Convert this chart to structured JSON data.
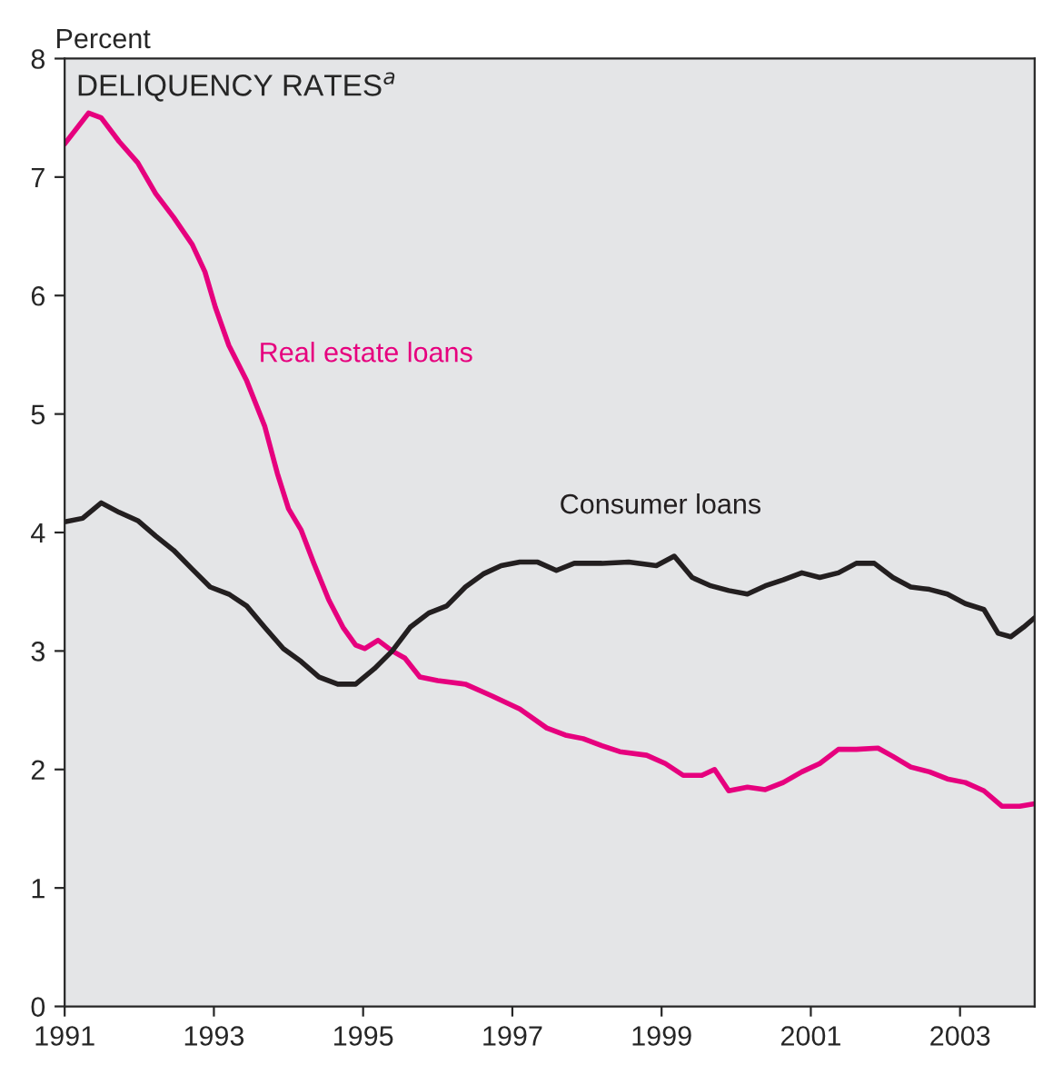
{
  "chart_data": {
    "type": "line",
    "title": "DELIQUENCY RATES$^{a}$",
    "ylabel": "Percent",
    "xlim": [
      1991,
      2004
    ],
    "xticks": [
      1991,
      1993,
      1995,
      1997,
      1999,
      2001,
      2003
    ],
    "ylim": [
      0,
      8
    ],
    "yticks": [
      0,
      1,
      2,
      3,
      4,
      5,
      6,
      7,
      8
    ],
    "grid": false,
    "legend": false,
    "marker": "none",
    "line_style": "solid",
    "series": [
      {
        "name": "Real estate loans",
        "color": "#e6007e",
        "x": [
          1991.0,
          1991.32,
          1991.49,
          1991.73,
          1991.98,
          1992.22,
          1992.46,
          1992.71,
          1992.88,
          1993.02,
          1993.2,
          1993.44,
          1993.68,
          1993.85,
          1994.0,
          1994.17,
          1994.34,
          1994.54,
          1994.73,
          1994.9,
          1995.02,
          1995.2,
          1995.39,
          1995.56,
          1995.76,
          1996.0,
          1996.37,
          1996.73,
          1997.1,
          1997.46,
          1997.71,
          1997.95,
          1998.2,
          1998.44,
          1998.8,
          1999.05,
          1999.29,
          1999.54,
          1999.71,
          1999.9,
          2000.15,
          2000.39,
          2000.63,
          2000.88,
          2001.12,
          2001.37,
          2001.61,
          2001.9,
          2002.1,
          2002.34,
          2002.59,
          2002.83,
          2003.07,
          2003.32,
          2003.56,
          2003.8,
          2004.0
        ],
        "values": [
          7.28,
          7.54,
          7.5,
          7.3,
          7.12,
          6.86,
          6.66,
          6.43,
          6.2,
          5.9,
          5.58,
          5.28,
          4.9,
          4.5,
          4.2,
          4.02,
          3.74,
          3.43,
          3.2,
          3.05,
          3.02,
          3.09,
          3.0,
          2.94,
          2.78,
          2.75,
          2.72,
          2.62,
          2.51,
          2.35,
          2.29,
          2.26,
          2.2,
          2.15,
          2.12,
          2.05,
          1.95,
          1.95,
          2.0,
          1.82,
          1.85,
          1.83,
          1.89,
          1.98,
          2.05,
          2.17,
          2.17,
          2.18,
          2.11,
          2.02,
          1.98,
          1.92,
          1.89,
          1.82,
          1.69,
          1.69,
          1.71
        ]
      },
      {
        "name": "Consumer loans",
        "color": "#231f20",
        "x": [
          1991.0,
          1991.24,
          1991.49,
          1991.73,
          1991.98,
          1992.22,
          1992.46,
          1992.71,
          1992.95,
          1993.2,
          1993.44,
          1993.68,
          1993.93,
          1994.17,
          1994.41,
          1994.66,
          1994.9,
          1995.15,
          1995.39,
          1995.63,
          1995.88,
          1996.12,
          1996.37,
          1996.61,
          1996.85,
          1997.1,
          1997.34,
          1997.59,
          1997.83,
          1998.2,
          1998.56,
          1998.93,
          1999.17,
          1999.41,
          1999.66,
          1999.9,
          2000.15,
          2000.39,
          2000.63,
          2000.88,
          2001.12,
          2001.37,
          2001.61,
          2001.85,
          2002.1,
          2002.34,
          2002.59,
          2002.83,
          2003.07,
          2003.32,
          2003.51,
          2003.68,
          2003.85,
          2004.0
        ],
        "values": [
          4.09,
          4.12,
          4.25,
          4.17,
          4.1,
          3.97,
          3.85,
          3.69,
          3.54,
          3.48,
          3.38,
          3.2,
          3.02,
          2.91,
          2.78,
          2.72,
          2.72,
          2.85,
          3.0,
          3.2,
          3.32,
          3.38,
          3.54,
          3.65,
          3.72,
          3.75,
          3.75,
          3.68,
          3.74,
          3.74,
          3.75,
          3.72,
          3.8,
          3.62,
          3.55,
          3.51,
          3.48,
          3.55,
          3.6,
          3.66,
          3.62,
          3.66,
          3.74,
          3.74,
          3.62,
          3.54,
          3.52,
          3.48,
          3.4,
          3.35,
          3.15,
          3.12,
          3.2,
          3.28
        ]
      }
    ]
  }
}
